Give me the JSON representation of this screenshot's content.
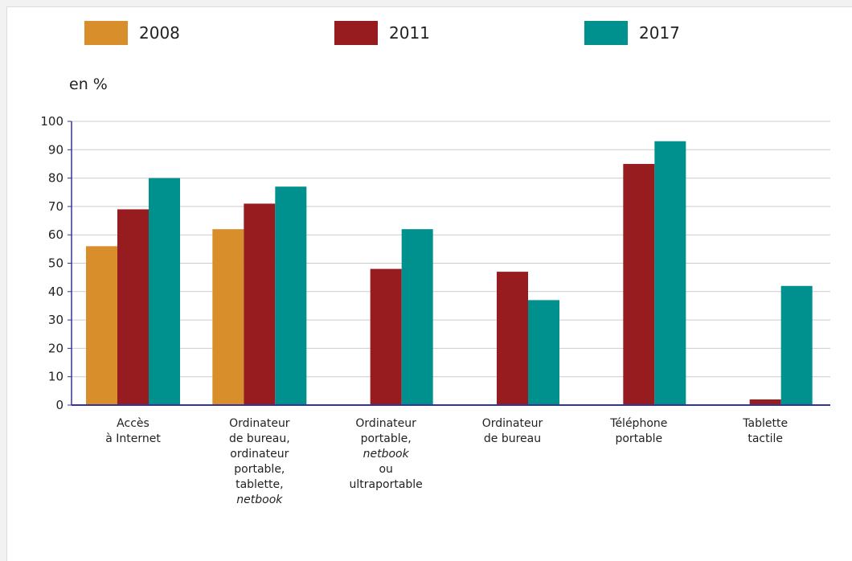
{
  "chart_data": {
    "type": "bar",
    "ylabel": "en %",
    "ylim": [
      0,
      100
    ],
    "yticks": [
      0,
      10,
      20,
      30,
      40,
      50,
      60,
      70,
      80,
      90,
      100
    ],
    "grid": true,
    "legend_placement": "top",
    "categories": [
      [
        "Accès",
        "à Internet"
      ],
      [
        "Ordinateur",
        "de bureau,",
        "ordinateur",
        "portable,",
        "tablette,",
        "netbook"
      ],
      [
        "Ordinateur",
        "portable,",
        "netbook",
        "ou",
        "ultraportable"
      ],
      [
        "Ordinateur",
        "de bureau"
      ],
      [
        "Téléphone",
        "portable"
      ],
      [
        "Tablette",
        "tactile"
      ]
    ],
    "italic_words": [
      "netbook"
    ],
    "series": [
      {
        "name": "2008",
        "color": "#d88f2b",
        "values": [
          56,
          62,
          null,
          null,
          null,
          null
        ]
      },
      {
        "name": "2011",
        "color": "#971c1f",
        "values": [
          69,
          71,
          48,
          47,
          85,
          2
        ]
      },
      {
        "name": "2017",
        "color": "#00908e",
        "values": [
          80,
          77,
          62,
          37,
          93,
          42
        ]
      }
    ],
    "colors": {
      "axis": "#33339a",
      "grid": "#cccccc"
    }
  }
}
